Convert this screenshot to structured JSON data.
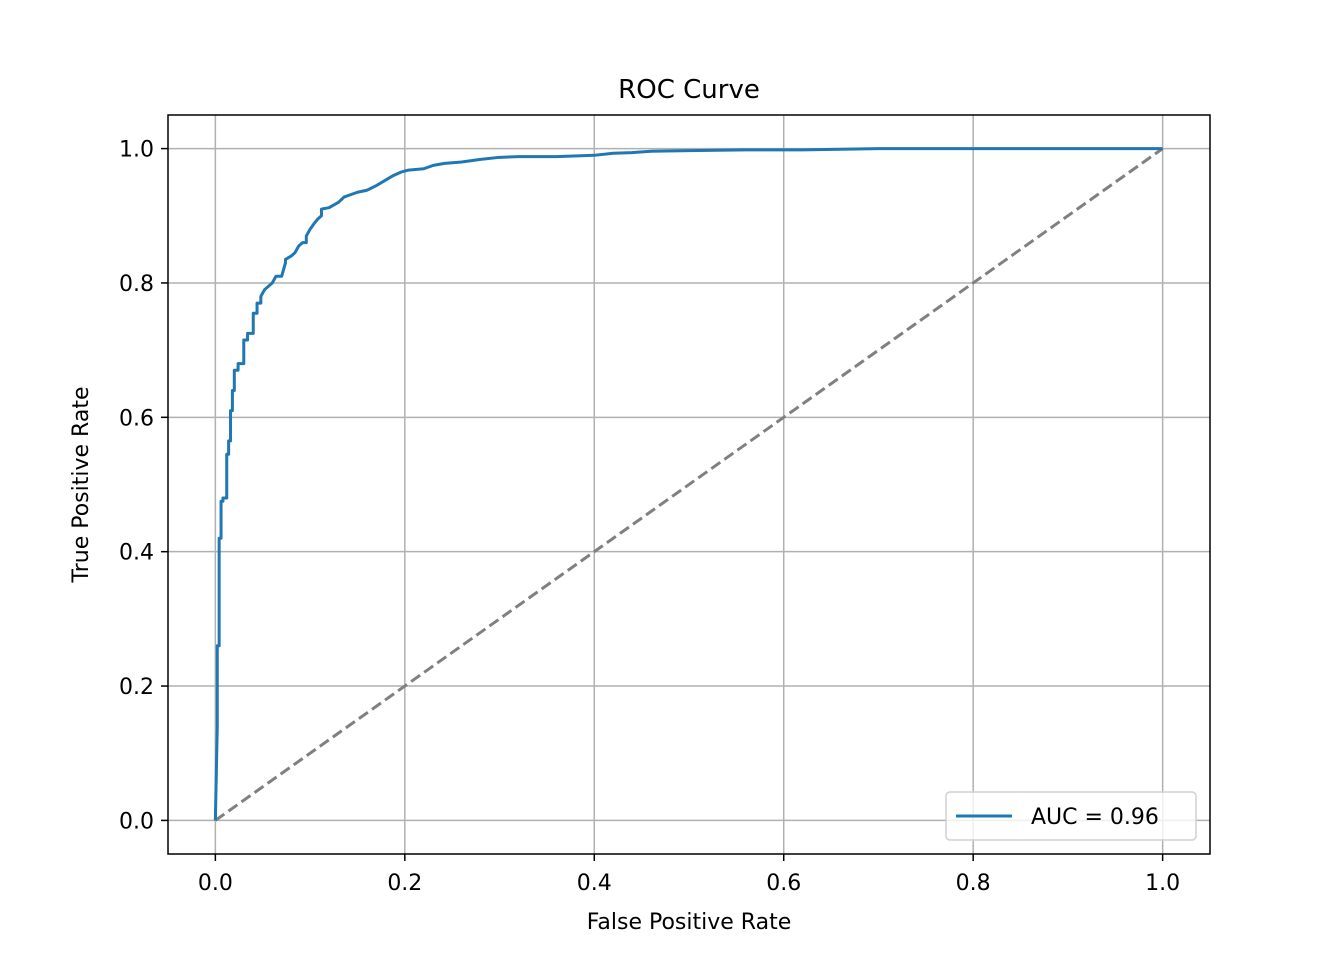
{
  "chart_data": {
    "type": "line",
    "title": "ROC Curve",
    "xlabel": "False Positive Rate",
    "ylabel": "True Positive Rate",
    "xlim": [
      -0.05,
      1.05
    ],
    "ylim": [
      -0.05,
      1.05
    ],
    "xticks": [
      "0.0",
      "0.2",
      "0.4",
      "0.6",
      "0.8",
      "1.0"
    ],
    "yticks": [
      "0.0",
      "0.2",
      "0.4",
      "0.6",
      "0.8",
      "1.0"
    ],
    "grid": true,
    "legend_position": "lower-right",
    "series": [
      {
        "name": "AUC = 0.96",
        "color": "#1f77b4",
        "style": "solid",
        "x": [
          0.0,
          0.002,
          0.002,
          0.004,
          0.004,
          0.006,
          0.006,
          0.008,
          0.008,
          0.012,
          0.012,
          0.014,
          0.014,
          0.016,
          0.016,
          0.018,
          0.018,
          0.02,
          0.02,
          0.024,
          0.024,
          0.03,
          0.03,
          0.034,
          0.034,
          0.04,
          0.04,
          0.044,
          0.044,
          0.048,
          0.048,
          0.052,
          0.056,
          0.06,
          0.064,
          0.07,
          0.074,
          0.074,
          0.08,
          0.084,
          0.088,
          0.092,
          0.096,
          0.096,
          0.1,
          0.104,
          0.108,
          0.112,
          0.112,
          0.12,
          0.13,
          0.136,
          0.14,
          0.15,
          0.16,
          0.17,
          0.176,
          0.182,
          0.188,
          0.196,
          0.204,
          0.22,
          0.23,
          0.242,
          0.26,
          0.28,
          0.3,
          0.32,
          0.36,
          0.4,
          0.42,
          0.44,
          0.46,
          0.5,
          0.56,
          0.62,
          0.7,
          0.8,
          0.9,
          1.0
        ],
        "y": [
          0.0,
          0.14,
          0.26,
          0.26,
          0.42,
          0.42,
          0.475,
          0.475,
          0.48,
          0.48,
          0.545,
          0.545,
          0.565,
          0.565,
          0.61,
          0.61,
          0.64,
          0.64,
          0.67,
          0.67,
          0.68,
          0.68,
          0.715,
          0.715,
          0.725,
          0.725,
          0.755,
          0.755,
          0.77,
          0.77,
          0.78,
          0.79,
          0.795,
          0.8,
          0.81,
          0.81,
          0.83,
          0.835,
          0.84,
          0.845,
          0.855,
          0.86,
          0.86,
          0.87,
          0.88,
          0.888,
          0.895,
          0.9,
          0.91,
          0.912,
          0.92,
          0.928,
          0.93,
          0.935,
          0.938,
          0.945,
          0.95,
          0.955,
          0.96,
          0.965,
          0.968,
          0.97,
          0.975,
          0.978,
          0.98,
          0.984,
          0.987,
          0.988,
          0.988,
          0.99,
          0.993,
          0.994,
          0.996,
          0.997,
          0.998,
          0.998,
          1.0,
          1.0,
          1.0,
          1.0
        ]
      },
      {
        "name": "",
        "color": "#808080",
        "style": "dashed",
        "x": [
          0.0,
          1.0
        ],
        "y": [
          0.0,
          1.0
        ]
      }
    ]
  }
}
